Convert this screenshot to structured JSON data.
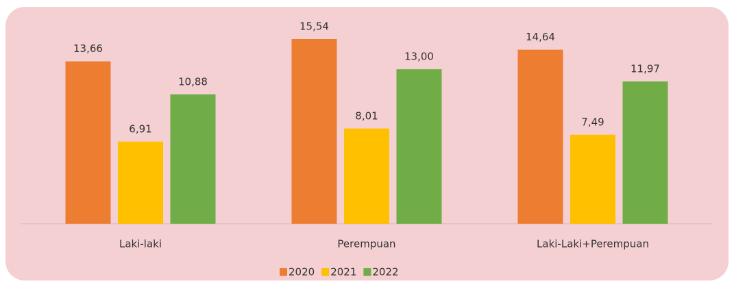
{
  "chart_data": {
    "type": "bar",
    "categories": [
      "Laki-laki",
      "Perempuan",
      "Laki-Laki+Perempuan"
    ],
    "series": [
      {
        "name": "2020",
        "color": "#ed7d31",
        "values": [
          13.66,
          15.54,
          14.64
        ],
        "value_labels": [
          "13,66",
          "15,54",
          "14,64"
        ]
      },
      {
        "name": "2021",
        "color": "#ffc000",
        "values": [
          6.91,
          8.01,
          7.49
        ],
        "value_labels": [
          "6,91",
          "8,01",
          "7,49"
        ]
      },
      {
        "name": "2022",
        "color": "#70ad47",
        "values": [
          10.88,
          13.0,
          11.97
        ],
        "value_labels": [
          "10,88",
          "13,00",
          "11,97"
        ]
      }
    ],
    "legend": "bottom"
  }
}
